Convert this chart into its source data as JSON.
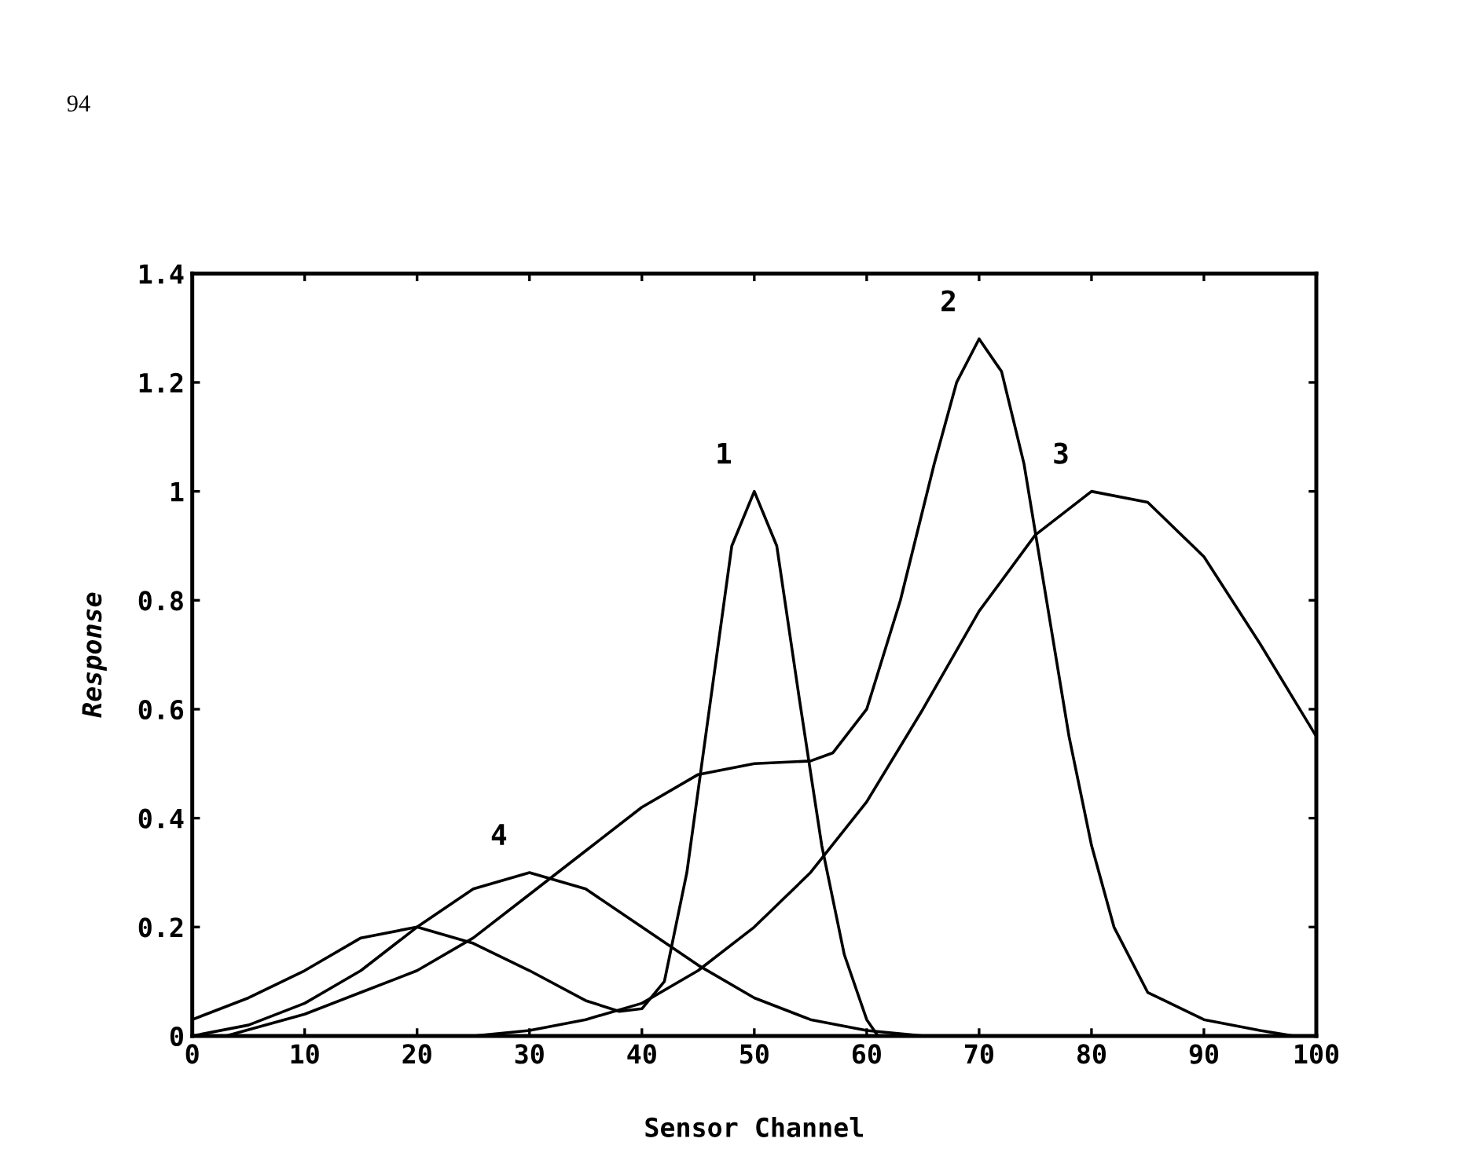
{
  "chart_data": {
    "type": "line",
    "xlabel": "Sensor Channel",
    "ylabel": "Response",
    "xlim": [
      0,
      100
    ],
    "ylim": [
      0,
      1.4
    ],
    "xticks": [
      0,
      10,
      20,
      30,
      40,
      50,
      60,
      70,
      80,
      90,
      100
    ],
    "yticks": [
      0,
      0.2,
      0.4,
      0.6,
      0.8,
      1,
      1.2,
      1.4
    ],
    "grid": false,
    "marker": "none",
    "line_style": "solid",
    "series": [
      {
        "name": "1",
        "color": "#000000",
        "x": [
          0,
          5,
          10,
          15,
          20,
          25,
          30,
          35,
          38,
          40,
          42,
          44,
          46,
          48,
          50,
          52,
          54,
          56,
          58,
          60,
          61
        ],
        "values": [
          0.03,
          0.07,
          0.12,
          0.18,
          0.2,
          0.17,
          0.12,
          0.065,
          0.045,
          0.05,
          0.1,
          0.3,
          0.6,
          0.9,
          1.0,
          0.9,
          0.62,
          0.35,
          0.15,
          0.03,
          0
        ]
      },
      {
        "name": "2",
        "color": "#000000",
        "x": [
          3,
          10,
          15,
          20,
          25,
          30,
          35,
          40,
          45,
          50,
          55,
          57,
          60,
          63,
          66,
          68,
          70,
          72,
          74,
          76,
          78,
          80,
          82,
          85,
          90,
          95,
          98
        ],
        "values": [
          0,
          0.04,
          0.08,
          0.12,
          0.18,
          0.26,
          0.34,
          0.42,
          0.48,
          0.5,
          0.505,
          0.52,
          0.6,
          0.8,
          1.05,
          1.2,
          1.28,
          1.22,
          1.05,
          0.8,
          0.55,
          0.35,
          0.2,
          0.08,
          0.03,
          0.01,
          0
        ]
      },
      {
        "name": "3",
        "color": "#000000",
        "x": [
          25,
          30,
          35,
          40,
          45,
          50,
          55,
          60,
          65,
          70,
          75,
          80,
          85,
          90,
          95,
          100
        ],
        "values": [
          0,
          0.01,
          0.03,
          0.06,
          0.12,
          0.2,
          0.3,
          0.43,
          0.6,
          0.78,
          0.92,
          1.0,
          0.98,
          0.88,
          0.72,
          0.55
        ]
      },
      {
        "name": "4",
        "color": "#000000",
        "x": [
          0,
          5,
          10,
          15,
          20,
          25,
          30,
          35,
          40,
          45,
          50,
          55,
          60,
          65
        ],
        "values": [
          0,
          0.02,
          0.06,
          0.12,
          0.2,
          0.27,
          0.3,
          0.27,
          0.2,
          0.13,
          0.07,
          0.03,
          0.01,
          0
        ]
      }
    ],
    "annotations": [
      "94"
    ]
  }
}
